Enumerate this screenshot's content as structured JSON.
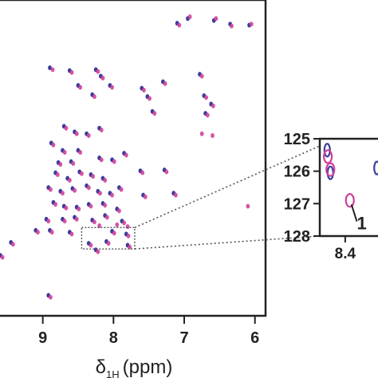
{
  "chart_data": [
    {
      "type": "scatter",
      "title": "",
      "xlabel_symbol": "δ",
      "xlabel_subscript": "1H",
      "xlabel_unit": "(ppm)",
      "ylabel": "",
      "x_reversed": true,
      "xlim": [
        5.85,
        9.65
      ],
      "ylim": [
        138,
        104
      ],
      "x_ticks": [
        9,
        8,
        7,
        6
      ],
      "x_tick_labels": [
        "9",
        "8",
        "7",
        "6"
      ],
      "grid": false,
      "colors": {
        "series_a": "#3a3d9c",
        "series_b": "#d0409a"
      },
      "series": [
        {
          "values": [
            {
              "x": 6.08,
              "y": 106.7
            },
            {
              "x": 6.35,
              "y": 106.6
            },
            {
              "x": 6.58,
              "y": 106.2
            },
            {
              "x": 6.95,
              "y": 106.0
            },
            {
              "x": 7.1,
              "y": 106.5
            },
            {
              "x": 8.9,
              "y": 111.3
            },
            {
              "x": 8.62,
              "y": 111.6
            },
            {
              "x": 8.5,
              "y": 113.2
            },
            {
              "x": 8.25,
              "y": 111.5
            },
            {
              "x": 8.18,
              "y": 112.2
            },
            {
              "x": 8.05,
              "y": 113.2
            },
            {
              "x": 8.3,
              "y": 114.2
            },
            {
              "x": 7.3,
              "y": 112.8
            },
            {
              "x": 6.78,
              "y": 112.0
            },
            {
              "x": 6.72,
              "y": 114.3
            },
            {
              "x": 7.6,
              "y": 113.5
            },
            {
              "x": 7.52,
              "y": 114.4
            },
            {
              "x": 7.45,
              "y": 116.0
            },
            {
              "x": 6.7,
              "y": 116.2
            },
            {
              "x": 6.62,
              "y": 115.2
            },
            {
              "x": 8.7,
              "y": 117.6
            },
            {
              "x": 8.55,
              "y": 118.2
            },
            {
              "x": 8.38,
              "y": 118.4
            },
            {
              "x": 8.2,
              "y": 117.8
            },
            {
              "x": 8.88,
              "y": 119.4
            },
            {
              "x": 8.72,
              "y": 120.2
            },
            {
              "x": 8.5,
              "y": 120.2
            },
            {
              "x": 8.78,
              "y": 121.5
            },
            {
              "x": 8.6,
              "y": 121.4
            },
            {
              "x": 8.2,
              "y": 121.0
            },
            {
              "x": 8.02,
              "y": 121.2
            },
            {
              "x": 7.85,
              "y": 120.5
            },
            {
              "x": 8.82,
              "y": 122.6
            },
            {
              "x": 8.65,
              "y": 123.2
            },
            {
              "x": 8.48,
              "y": 122.5
            },
            {
              "x": 8.32,
              "y": 122.8
            },
            {
              "x": 8.15,
              "y": 123.2
            },
            {
              "x": 7.62,
              "y": 122.4
            },
            {
              "x": 7.28,
              "y": 122.3
            },
            {
              "x": 8.92,
              "y": 124.2
            },
            {
              "x": 8.75,
              "y": 124.6
            },
            {
              "x": 8.58,
              "y": 124.3
            },
            {
              "x": 8.38,
              "y": 124.0
            },
            {
              "x": 8.22,
              "y": 124.6
            },
            {
              "x": 8.05,
              "y": 124.8
            },
            {
              "x": 7.92,
              "y": 124.2
            },
            {
              "x": 7.58,
              "y": 125.0
            },
            {
              "x": 7.15,
              "y": 124.8
            },
            {
              "x": 8.85,
              "y": 125.8
            },
            {
              "x": 8.7,
              "y": 126.2
            },
            {
              "x": 8.52,
              "y": 126.3
            },
            {
              "x": 8.35,
              "y": 126.0
            },
            {
              "x": 8.15,
              "y": 125.9
            },
            {
              "x": 7.95,
              "y": 126.5
            },
            {
              "x": 8.95,
              "y": 127.6
            },
            {
              "x": 8.72,
              "y": 127.6
            },
            {
              "x": 8.55,
              "y": 127.4
            },
            {
              "x": 8.3,
              "y": 127.7
            },
            {
              "x": 8.12,
              "y": 127.2
            },
            {
              "x": 7.88,
              "y": 127.8
            },
            {
              "x": 9.1,
              "y": 128.8
            },
            {
              "x": 8.9,
              "y": 128.8
            },
            {
              "x": 8.62,
              "y": 129.0
            },
            {
              "x": 8.02,
              "y": 128.9
            },
            {
              "x": 7.82,
              "y": 129.2
            },
            {
              "x": 9.45,
              "y": 130.1
            },
            {
              "x": 8.35,
              "y": 130.2
            },
            {
              "x": 8.1,
              "y": 130.0
            },
            {
              "x": 7.8,
              "y": 130.4
            },
            {
              "x": 9.6,
              "y": 131.5
            },
            {
              "x": 8.25,
              "y": 130.9
            },
            {
              "x": 8.92,
              "y": 135.8
            }
          ]
        },
        {
          "values": [
            {
              "x": 6.05,
              "y": 106.6
            },
            {
              "x": 6.33,
              "y": 106.8
            },
            {
              "x": 6.55,
              "y": 106.0
            },
            {
              "x": 6.92,
              "y": 105.8
            },
            {
              "x": 7.07,
              "y": 106.7
            },
            {
              "x": 8.86,
              "y": 111.5
            },
            {
              "x": 8.59,
              "y": 111.8
            },
            {
              "x": 8.47,
              "y": 113.4
            },
            {
              "x": 8.22,
              "y": 111.7
            },
            {
              "x": 8.15,
              "y": 112.4
            },
            {
              "x": 8.02,
              "y": 113.4
            },
            {
              "x": 8.27,
              "y": 114.4
            },
            {
              "x": 7.27,
              "y": 113.0
            },
            {
              "x": 6.75,
              "y": 112.2
            },
            {
              "x": 6.69,
              "y": 114.5
            },
            {
              "x": 7.57,
              "y": 113.7
            },
            {
              "x": 7.49,
              "y": 114.6
            },
            {
              "x": 7.42,
              "y": 116.2
            },
            {
              "x": 6.67,
              "y": 116.4
            },
            {
              "x": 6.59,
              "y": 115.4
            },
            {
              "x": 8.67,
              "y": 117.8
            },
            {
              "x": 8.52,
              "y": 118.4
            },
            {
              "x": 8.35,
              "y": 118.6
            },
            {
              "x": 8.17,
              "y": 118.0
            },
            {
              "x": 8.85,
              "y": 119.6
            },
            {
              "x": 8.69,
              "y": 120.4
            },
            {
              "x": 8.47,
              "y": 120.4
            },
            {
              "x": 8.75,
              "y": 121.7
            },
            {
              "x": 8.57,
              "y": 121.6
            },
            {
              "x": 8.17,
              "y": 121.2
            },
            {
              "x": 7.99,
              "y": 121.4
            },
            {
              "x": 7.82,
              "y": 120.7
            },
            {
              "x": 8.79,
              "y": 122.8
            },
            {
              "x": 8.62,
              "y": 123.4
            },
            {
              "x": 8.45,
              "y": 122.7
            },
            {
              "x": 8.29,
              "y": 123.0
            },
            {
              "x": 8.12,
              "y": 123.4
            },
            {
              "x": 7.59,
              "y": 122.6
            },
            {
              "x": 7.25,
              "y": 122.5
            },
            {
              "x": 8.89,
              "y": 124.4
            },
            {
              "x": 8.72,
              "y": 124.8
            },
            {
              "x": 8.55,
              "y": 124.5
            },
            {
              "x": 8.35,
              "y": 124.2
            },
            {
              "x": 8.19,
              "y": 124.8
            },
            {
              "x": 8.02,
              "y": 125.0
            },
            {
              "x": 7.89,
              "y": 124.4
            },
            {
              "x": 7.55,
              "y": 125.2
            },
            {
              "x": 7.12,
              "y": 125.0
            },
            {
              "x": 8.82,
              "y": 126.0
            },
            {
              "x": 8.67,
              "y": 126.4
            },
            {
              "x": 8.49,
              "y": 126.5
            },
            {
              "x": 8.32,
              "y": 126.2
            },
            {
              "x": 8.12,
              "y": 126.1
            },
            {
              "x": 7.92,
              "y": 126.7
            },
            {
              "x": 8.92,
              "y": 127.8
            },
            {
              "x": 8.69,
              "y": 127.8
            },
            {
              "x": 8.52,
              "y": 127.6
            },
            {
              "x": 8.27,
              "y": 127.9
            },
            {
              "x": 8.09,
              "y": 127.4
            },
            {
              "x": 7.85,
              "y": 128.0
            },
            {
              "x": 9.07,
              "y": 129.0
            },
            {
              "x": 8.87,
              "y": 129.0
            },
            {
              "x": 8.59,
              "y": 129.2
            },
            {
              "x": 7.99,
              "y": 129.1
            },
            {
              "x": 7.79,
              "y": 129.4
            },
            {
              "x": 9.42,
              "y": 130.3
            },
            {
              "x": 8.32,
              "y": 130.4
            },
            {
              "x": 8.07,
              "y": 130.2
            },
            {
              "x": 7.77,
              "y": 130.6
            },
            {
              "x": 9.57,
              "y": 131.7
            },
            {
              "x": 8.22,
              "y": 131.1
            },
            {
              "x": 8.89,
              "y": 136.0
            },
            {
              "x": 8.2,
              "y": 128.3
            },
            {
              "x": 7.95,
              "y": 128.2
            },
            {
              "x": 7.8,
              "y": 128.4
            },
            {
              "x": 6.1,
              "y": 126.2
            },
            {
              "x": 6.6,
              "y": 118.6
            },
            {
              "x": 6.75,
              "y": 118.4
            }
          ]
        }
      ],
      "zoom_box": {
        "xlim": [
          8.45,
          7.7
        ],
        "ylim": [
          128.5,
          130.8
        ]
      }
    },
    {
      "type": "scatter",
      "title": "",
      "xlabel": "",
      "ylabel": "",
      "x_reversed": true,
      "xlim": [
        8.52,
        8.2
      ],
      "ylim": [
        125,
        128
      ],
      "x_ticks": [
        8.4
      ],
      "x_tick_labels": [
        "8.4"
      ],
      "y_ticks": [
        125,
        126,
        127,
        128
      ],
      "y_tick_labels": [
        "125",
        "126",
        "127",
        "128"
      ],
      "grid": false,
      "series": [
        {
          "values": [
            {
              "x": 8.485,
              "y": 125.35
            },
            {
              "x": 8.47,
              "y": 126.05
            },
            {
              "x": 8.25,
              "y": 125.9
            }
          ]
        },
        {
          "values": [
            {
              "x": 8.47,
              "y": 125.95
            },
            {
              "x": 8.482,
              "y": 125.55
            },
            {
              "x": 8.378,
              "y": 126.9
            }
          ]
        }
      ],
      "annotations": [
        {
          "text": "1",
          "x": 8.33,
          "y": 127.5
        }
      ]
    }
  ]
}
